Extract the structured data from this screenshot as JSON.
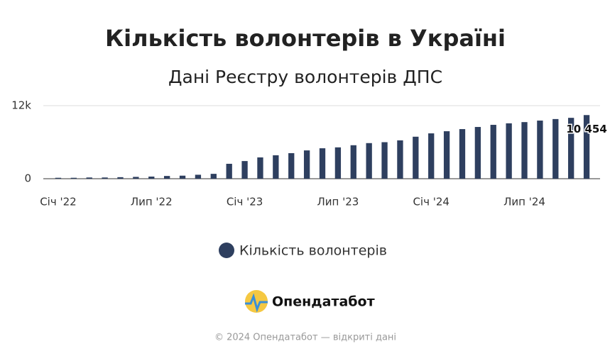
{
  "chart_data": {
    "type": "bar",
    "title": "Кількість волонтерів в Україні",
    "subtitle": "Дані Реєстру волонтерів ДПС",
    "categories": [
      "Січ '22",
      null,
      null,
      null,
      null,
      null,
      "Лип '22",
      null,
      null,
      null,
      null,
      null,
      "Січ '23",
      null,
      null,
      null,
      null,
      null,
      "Лип '23",
      null,
      null,
      null,
      null,
      null,
      "Січ '24",
      null,
      null,
      null,
      null,
      null,
      "Лип '24",
      null,
      null,
      null,
      null
    ],
    "series": [
      {
        "name": "Кількість волонтерів",
        "color": "#2e3f5f",
        "values": [
          150,
          150,
          200,
          200,
          250,
          300,
          350,
          450,
          500,
          650,
          800,
          2450,
          2900,
          3500,
          3850,
          4200,
          4650,
          5000,
          5150,
          5500,
          5850,
          6000,
          6300,
          6900,
          7450,
          7800,
          8150,
          8500,
          8850,
          9100,
          9300,
          9550,
          9800,
          10000,
          10454
        ],
        "value_labels": [
          null,
          null,
          null,
          null,
          null,
          null,
          null,
          null,
          null,
          null,
          null,
          null,
          null,
          null,
          null,
          null,
          null,
          null,
          null,
          null,
          null,
          null,
          null,
          null,
          null,
          null,
          null,
          null,
          null,
          null,
          null,
          null,
          null,
          null,
          "10 454"
        ]
      }
    ],
    "ylim": [
      0,
      12000
    ],
    "yticks": [
      0,
      {
        "value": 12000,
        "label": "12k"
      }
    ],
    "grid": true,
    "legend": "bottom"
  },
  "brand": "Опендатабот",
  "footer": "© 2024 Опендатабот — відкриті дані"
}
